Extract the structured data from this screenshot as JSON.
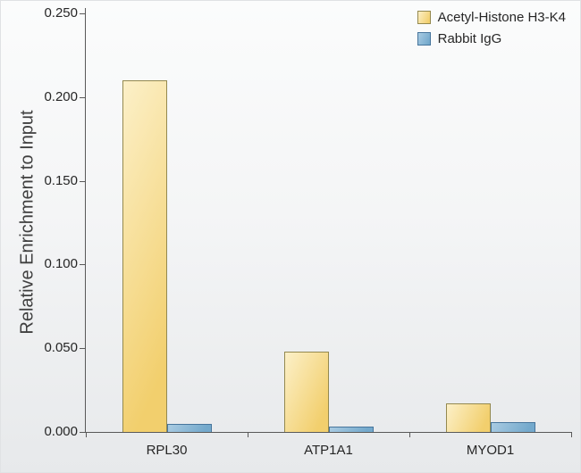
{
  "chart_data": {
    "type": "bar",
    "ylabel": "Relative Enrichment to Input",
    "xlabel": "",
    "categories": [
      "RPL30",
      "ATP1A1",
      "MYOD1"
    ],
    "series": [
      {
        "name": "Acetyl-Histone H3-K4",
        "color": "#F2CF6D",
        "color_light": "#FCF0C8",
        "border": "#94894F",
        "values": [
          0.21,
          0.048,
          0.017
        ]
      },
      {
        "name": "Rabbit IgG",
        "color": "#74A9CC",
        "color_light": "#A9CBE2",
        "border": "#47759C",
        "values": [
          0.005,
          0.003,
          0.006
        ]
      }
    ],
    "ylim": [
      0,
      0.25
    ],
    "ytick_step": 0.05,
    "ytick_format_decimals": 3,
    "grid": false,
    "legend_position": "top-right"
  }
}
